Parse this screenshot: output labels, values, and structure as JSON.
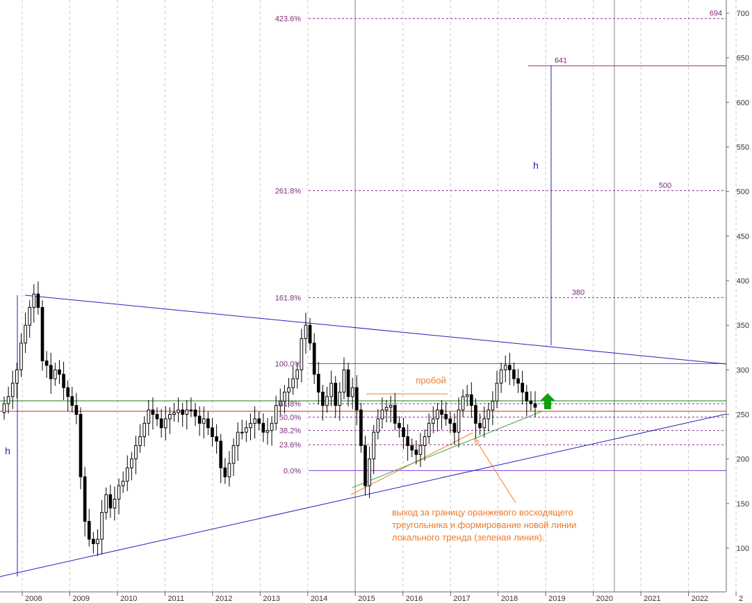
{
  "chart_data": {
    "type": "candlestick",
    "title": "",
    "xlabel": "",
    "ylabel": "",
    "ylim": [
      58,
      708
    ],
    "xlim": [
      2007.7,
      2023.2
    ],
    "x_ticks": [
      "2008",
      "2009",
      "2010",
      "2011",
      "2012",
      "2013",
      "2014",
      "2015",
      "2016",
      "2017",
      "2018",
      "2019",
      "2020",
      "2021",
      "2022",
      "2"
    ],
    "y_ticks": [
      100,
      150,
      200,
      250,
      300,
      350,
      400,
      450,
      500,
      550,
      600,
      650,
      700
    ],
    "grid": "vertical dashed year lines",
    "colors": {
      "blue_line": "#2222bb",
      "purple": "#8a2a8a",
      "fib_dash": "#8a2a8a",
      "violet_line": "#7a3ad8",
      "green_line": "#1a7a1a",
      "red_line": "#dd2222",
      "orange": "#f07a2a",
      "trend_green": "#3aa83a",
      "arrow_green": "#10a010",
      "vline": "#888888"
    },
    "candles_close": [
      262,
      270,
      285,
      300,
      330,
      350,
      370,
      385,
      370,
      310,
      305,
      290,
      300,
      295,
      280,
      270,
      260,
      250,
      180,
      130,
      110,
      105,
      110,
      140,
      160,
      145,
      155,
      170,
      175,
      190,
      200,
      215,
      225,
      240,
      255,
      250,
      245,
      235,
      245,
      250,
      252,
      255,
      250,
      255,
      255,
      248,
      240,
      245,
      235,
      225,
      220,
      190,
      180,
      195,
      215,
      230,
      230,
      235,
      240,
      245,
      240,
      230,
      232,
      240,
      260,
      265,
      275,
      280,
      290,
      300,
      335,
      350,
      330,
      295,
      275,
      260,
      270,
      285,
      260,
      275,
      300,
      270,
      280,
      255,
      215,
      170,
      200,
      230,
      245,
      255,
      258,
      260,
      240,
      235,
      225,
      215,
      210,
      205,
      215,
      225,
      240,
      245,
      255,
      250,
      245,
      240,
      230,
      255,
      270,
      272,
      260,
      240,
      235,
      245,
      255,
      265,
      285,
      300,
      305,
      300,
      290,
      285,
      275,
      265,
      262,
      258
    ],
    "labels": {
      "fib_levels": [
        {
          "label": "423.6%",
          "value": 694
        },
        {
          "label": "261.8%",
          "value": 501
        },
        {
          "label": "161.8%",
          "value": 381
        },
        {
          "label": "100.0%",
          "value": 307
        },
        {
          "label": "61.8%",
          "value": 262
        },
        {
          "label": "50.0%",
          "value": 247
        },
        {
          "label": "38.2%",
          "value": 232
        },
        {
          "label": "23.6%",
          "value": 216
        },
        {
          "label": "0.0%",
          "value": 187
        }
      ],
      "targets": [
        {
          "label": "694",
          "value": 694
        },
        {
          "label": "641",
          "value": 641
        },
        {
          "label": "500",
          "value": 501
        },
        {
          "label": "380",
          "value": 381
        }
      ],
      "h_left": "h",
      "h_right": "h",
      "breakout": "пробой",
      "annotation": [
        "выход за границу оранжевого восходящего",
        "треугольника и формирование новой линии",
        "локального тренда (зеленая линия)."
      ]
    }
  }
}
